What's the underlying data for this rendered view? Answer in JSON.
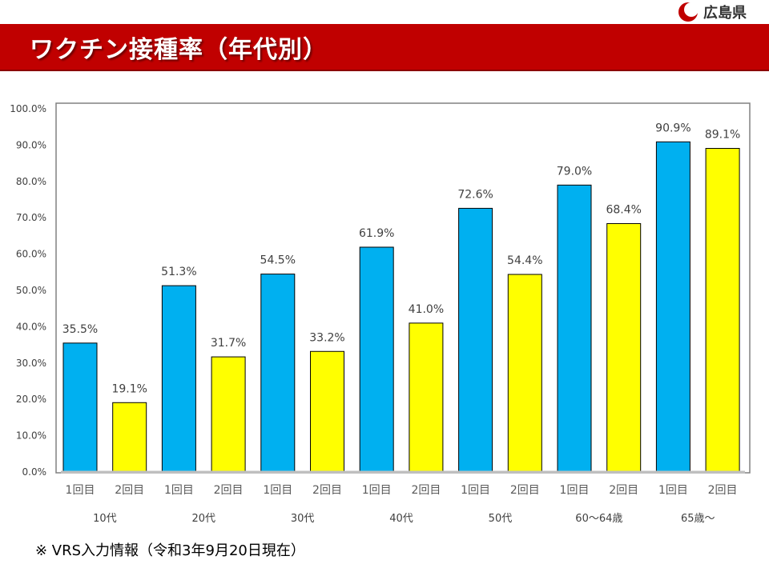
{
  "header": {
    "logo_text": "広島県",
    "title": "ワクチン接種率（年代別）"
  },
  "footnote": "※ VRS入力情報（令和3年9月20日現在）",
  "colors": {
    "title_bar": "#c00000",
    "dose1": "#00b0f0",
    "dose2": "#ffff00"
  },
  "chart_data": {
    "type": "bar",
    "title": "",
    "xlabel": "",
    "ylabel": "",
    "ylim": [
      0,
      100
    ],
    "y_ticks": [
      "0.0%",
      "10.0%",
      "20.0%",
      "30.0%",
      "40.0%",
      "50.0%",
      "60.0%",
      "70.0%",
      "80.0%",
      "90.0%",
      "100.0%"
    ],
    "grid": false,
    "legend": "none",
    "groups": [
      "10代",
      "20代",
      "30代",
      "40代",
      "50代",
      "60〜64歳",
      "65歳〜"
    ],
    "bar_labels": [
      "1回目",
      "2回目"
    ],
    "series": [
      {
        "values": [
          35.5,
          51.3,
          54.5,
          61.9,
          72.6,
          79.0,
          90.9
        ],
        "labels": [
          "35.5%",
          "51.3%",
          "54.5%",
          "61.9%",
          "72.6%",
          "79.0%",
          "90.9%"
        ]
      },
      {
        "values": [
          19.1,
          31.7,
          33.2,
          41.0,
          54.4,
          68.4,
          89.1
        ],
        "labels": [
          "19.1%",
          "31.7%",
          "33.2%",
          "41.0%",
          "54.4%",
          "68.4%",
          "89.1%"
        ]
      }
    ]
  }
}
